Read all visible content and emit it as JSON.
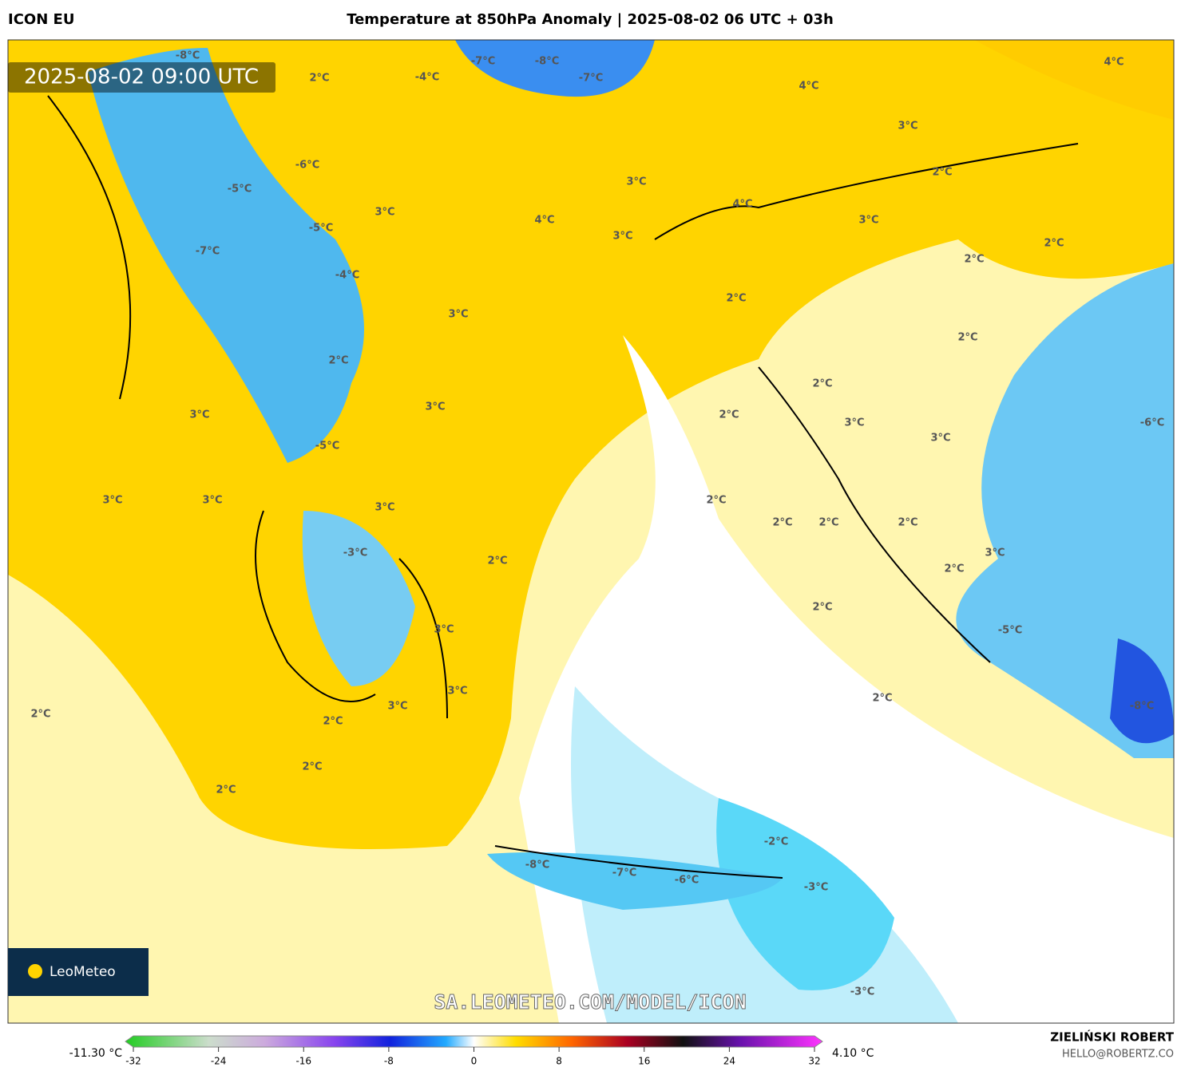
{
  "header": {
    "model": "ICON EU",
    "title": "Temperature at 850hPa Anomaly | 2025-08-02 06 UTC + 03h"
  },
  "timestamp": "2025-08-02 09:00 UTC",
  "watermark": "SA.LEOMETEO.COM/MODEL/ICON",
  "logo": "LeoMeteo",
  "credit": {
    "name": "ZIELIŃSKI ROBERT",
    "email": "HELLO@ROBERTZ.CO"
  },
  "colorbar": {
    "min_label": "-11.30 °C",
    "max_label": "4.10 °C",
    "ticks": [
      -32,
      -24,
      -16,
      -8,
      0,
      8,
      16,
      24,
      32
    ]
  },
  "labels": [
    "-8°C",
    "-4°C",
    "-7°C",
    "-8°C",
    "-7°C",
    "4°C",
    "4°C",
    "2°C",
    "3°C",
    "-6°C",
    "-5°C",
    "2°C",
    "3°C",
    "4°C",
    "3°C",
    "4°C",
    "3°C",
    "-5°C",
    "3°C",
    "2°C",
    "-7°C",
    "2°C",
    "-4°C",
    "2°C",
    "3°C",
    "2°C",
    "2°C",
    "2°C",
    "3°C",
    "3°C",
    "2°C",
    "3°C",
    "-6°C",
    "3°C",
    "-5°C",
    "3°C",
    "3°C",
    "2°C",
    "3°C",
    "2°C",
    "2°C",
    "2°C",
    "-3°C",
    "3°C",
    "2°C",
    "2°C",
    "2°C",
    "3°C",
    "-5°C",
    "3°C",
    "2°C",
    "3°C",
    "-8°C",
    "2°C",
    "2°C",
    "2°C",
    "2°C",
    "-2°C",
    "-8°C",
    "-7°C",
    "-6°C",
    "-3°C",
    "-3°C"
  ]
}
